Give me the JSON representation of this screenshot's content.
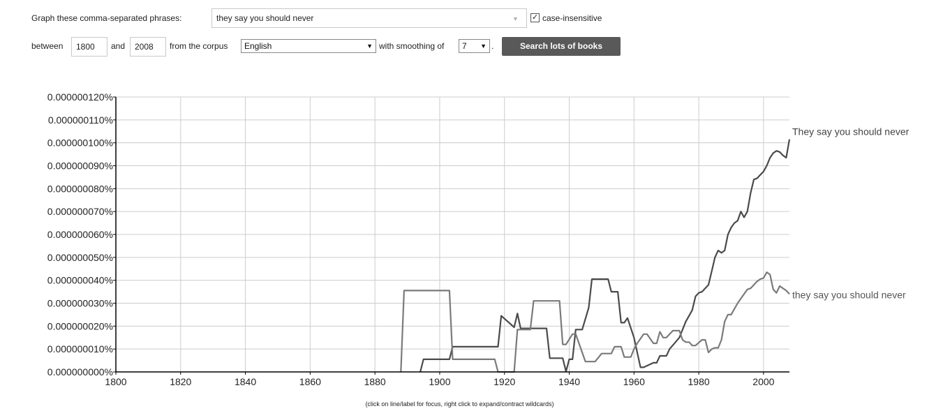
{
  "form": {
    "phrases_label": "Graph these comma-separated phrases:",
    "phrases_value": "they say you should never",
    "case_label": "case-insensitive",
    "case_checked": true,
    "between_label": "between",
    "start_year": "1800",
    "and_label": "and",
    "end_year": "2008",
    "corpus_label": "from the corpus",
    "corpus_value": "English",
    "smoothing_label": "with smoothing of",
    "smoothing_value": "7",
    "period": ".",
    "search_button": "Search lots of books"
  },
  "footer_note": "(click on line/label for focus, right click to expand/contract wildcards)",
  "colors": {
    "grid": "#cccccc",
    "axis": "#000000",
    "line_dark": "#4a4a4a",
    "line_light": "#7a7a7a",
    "button": "#595959"
  },
  "chart_data": {
    "type": "line",
    "title": "",
    "xlabel": "",
    "ylabel": "",
    "xlim": [
      1800,
      2008
    ],
    "ylim": [
      0,
      1.2e-07
    ],
    "x_ticks": [
      {
        "value": 1800,
        "label": "1800"
      },
      {
        "value": 1820,
        "label": "1820"
      },
      {
        "value": 1840,
        "label": "1840"
      },
      {
        "value": 1860,
        "label": "1860"
      },
      {
        "value": 1880,
        "label": "1880"
      },
      {
        "value": 1900,
        "label": "1900"
      },
      {
        "value": 1920,
        "label": "1920"
      },
      {
        "value": 1940,
        "label": "1940"
      },
      {
        "value": 1960,
        "label": "1960"
      },
      {
        "value": 1980,
        "label": "1980"
      },
      {
        "value": 2000,
        "label": "2000"
      }
    ],
    "y_ticks": [
      {
        "value": 1.2e-07,
        "label": "0.000000120%"
      },
      {
        "value": 1.1e-07,
        "label": "0.000000110%"
      },
      {
        "value": 1e-07,
        "label": "0.000000100%"
      },
      {
        "value": 9e-08,
        "label": "0.000000090%"
      },
      {
        "value": 8e-08,
        "label": "0.000000080%"
      },
      {
        "value": 7e-08,
        "label": "0.000000070%"
      },
      {
        "value": 6e-08,
        "label": "0.000000060%"
      },
      {
        "value": 5e-08,
        "label": "0.000000050%"
      },
      {
        "value": 4e-08,
        "label": "0.000000040%"
      },
      {
        "value": 3e-08,
        "label": "0.000000030%"
      },
      {
        "value": 2e-08,
        "label": "0.000000020%"
      },
      {
        "value": 1e-08,
        "label": "0.000000010%"
      },
      {
        "value": 0,
        "label": "0.000000000%"
      }
    ],
    "grid": true,
    "legend": "line-end labels",
    "series": [
      {
        "name": "They say you should never",
        "color": "#4a4a4a",
        "x": [
          1894,
          1895,
          1902,
          1903,
          1904,
          1917,
          1918,
          1919,
          1923,
          1924,
          1925,
          1926,
          1933,
          1934,
          1937,
          1938,
          1939,
          1940,
          1941,
          1942,
          1944,
          1946,
          1947,
          1952,
          1953,
          1955,
          1956,
          1957,
          1958,
          1960,
          1962,
          1963,
          1966,
          1967,
          1968,
          1969,
          1970,
          1971,
          1974,
          1976,
          1977,
          1978,
          1979,
          1980,
          1981,
          1983,
          1984,
          1985,
          1986,
          1987,
          1988,
          1989,
          1990,
          1991,
          1992,
          1993,
          1994,
          1995,
          1996,
          1997,
          1998,
          1999,
          2000,
          2001,
          2002,
          2003,
          2004,
          2005,
          2006,
          2007,
          2008
        ],
        "y": [
          0,
          5.5e-09,
          5.5e-09,
          5.5e-09,
          1.1e-08,
          1.1e-08,
          1.1e-08,
          2.45e-08,
          1.95e-08,
          2.55e-08,
          1.9e-08,
          1.9e-08,
          1.9e-08,
          6e-09,
          6e-09,
          6e-09,
          2e-10,
          5.5e-09,
          5.5e-09,
          1.85e-08,
          1.85e-08,
          2.8e-08,
          4.05e-08,
          4.05e-08,
          3.5e-08,
          3.5e-08,
          2.15e-08,
          2.15e-08,
          2.35e-08,
          1.5e-08,
          2e-09,
          2e-09,
          4e-09,
          4e-09,
          7e-09,
          7e-09,
          7e-09,
          1e-08,
          1.5e-08,
          2.2e-08,
          2.45e-08,
          2.7e-08,
          3.3e-08,
          3.45e-08,
          3.5e-08,
          3.8e-08,
          4.4e-08,
          5e-08,
          5.3e-08,
          5.2e-08,
          5.3e-08,
          6e-08,
          6.3e-08,
          6.5e-08,
          6.6e-08,
          7e-08,
          6.75e-08,
          7e-08,
          7.8e-08,
          8.4e-08,
          8.45e-08,
          8.6e-08,
          8.75e-08,
          9e-08,
          9.35e-08,
          9.55e-08,
          9.65e-08,
          9.6e-08,
          9.45e-08,
          9.35e-08,
          1.015e-07
        ]
      },
      {
        "name": "they say you should never",
        "color": "#7a7a7a",
        "x": [
          1888,
          1889,
          1903,
          1904,
          1917,
          1918,
          1923,
          1924,
          1928,
          1929,
          1937,
          1938,
          1939,
          1941,
          1942,
          1945,
          1946,
          1948,
          1950,
          1952,
          1953,
          1954,
          1956,
          1957,
          1959,
          1960,
          1961,
          1963,
          1964,
          1966,
          1967,
          1968,
          1969,
          1970,
          1972,
          1974,
          1975,
          1976,
          1977,
          1978,
          1979,
          1981,
          1982,
          1983,
          1984,
          1985,
          1986,
          1987,
          1988,
          1989,
          1990,
          1991,
          1992,
          1993,
          1994,
          1995,
          1996,
          1997,
          1998,
          1999,
          2000,
          2001,
          2002,
          2003,
          2004,
          2005,
          2006,
          2007,
          2008
        ],
        "y": [
          0,
          3.55e-08,
          3.55e-08,
          5.5e-09,
          5.5e-09,
          0,
          0,
          1.85e-08,
          1.85e-08,
          3.1e-08,
          3.1e-08,
          1.2e-08,
          1.2e-08,
          1.65e-08,
          1.65e-08,
          4.5e-09,
          4.5e-09,
          4.5e-09,
          8e-09,
          8e-09,
          8e-09,
          1.1e-08,
          1.1e-08,
          6.5e-09,
          6.5e-09,
          1e-08,
          1.25e-08,
          1.65e-08,
          1.65e-08,
          1.25e-08,
          1.25e-08,
          1.75e-08,
          1.5e-08,
          1.5e-08,
          1.8e-08,
          1.8e-08,
          1.4e-08,
          1.3e-08,
          1.3e-08,
          1.15e-08,
          1.15e-08,
          1.4e-08,
          1.4e-08,
          8.5e-09,
          1e-08,
          1.05e-08,
          1.05e-08,
          1.4e-08,
          2.2e-08,
          2.5e-08,
          2.5e-08,
          2.75e-08,
          3e-08,
          3.2e-08,
          3.4e-08,
          3.6e-08,
          3.65e-08,
          3.8e-08,
          3.95e-08,
          4.05e-08,
          4.1e-08,
          4.35e-08,
          4.25e-08,
          3.6e-08,
          3.45e-08,
          3.75e-08,
          3.65e-08,
          3.55e-08,
          3.4e-08
        ]
      }
    ]
  }
}
